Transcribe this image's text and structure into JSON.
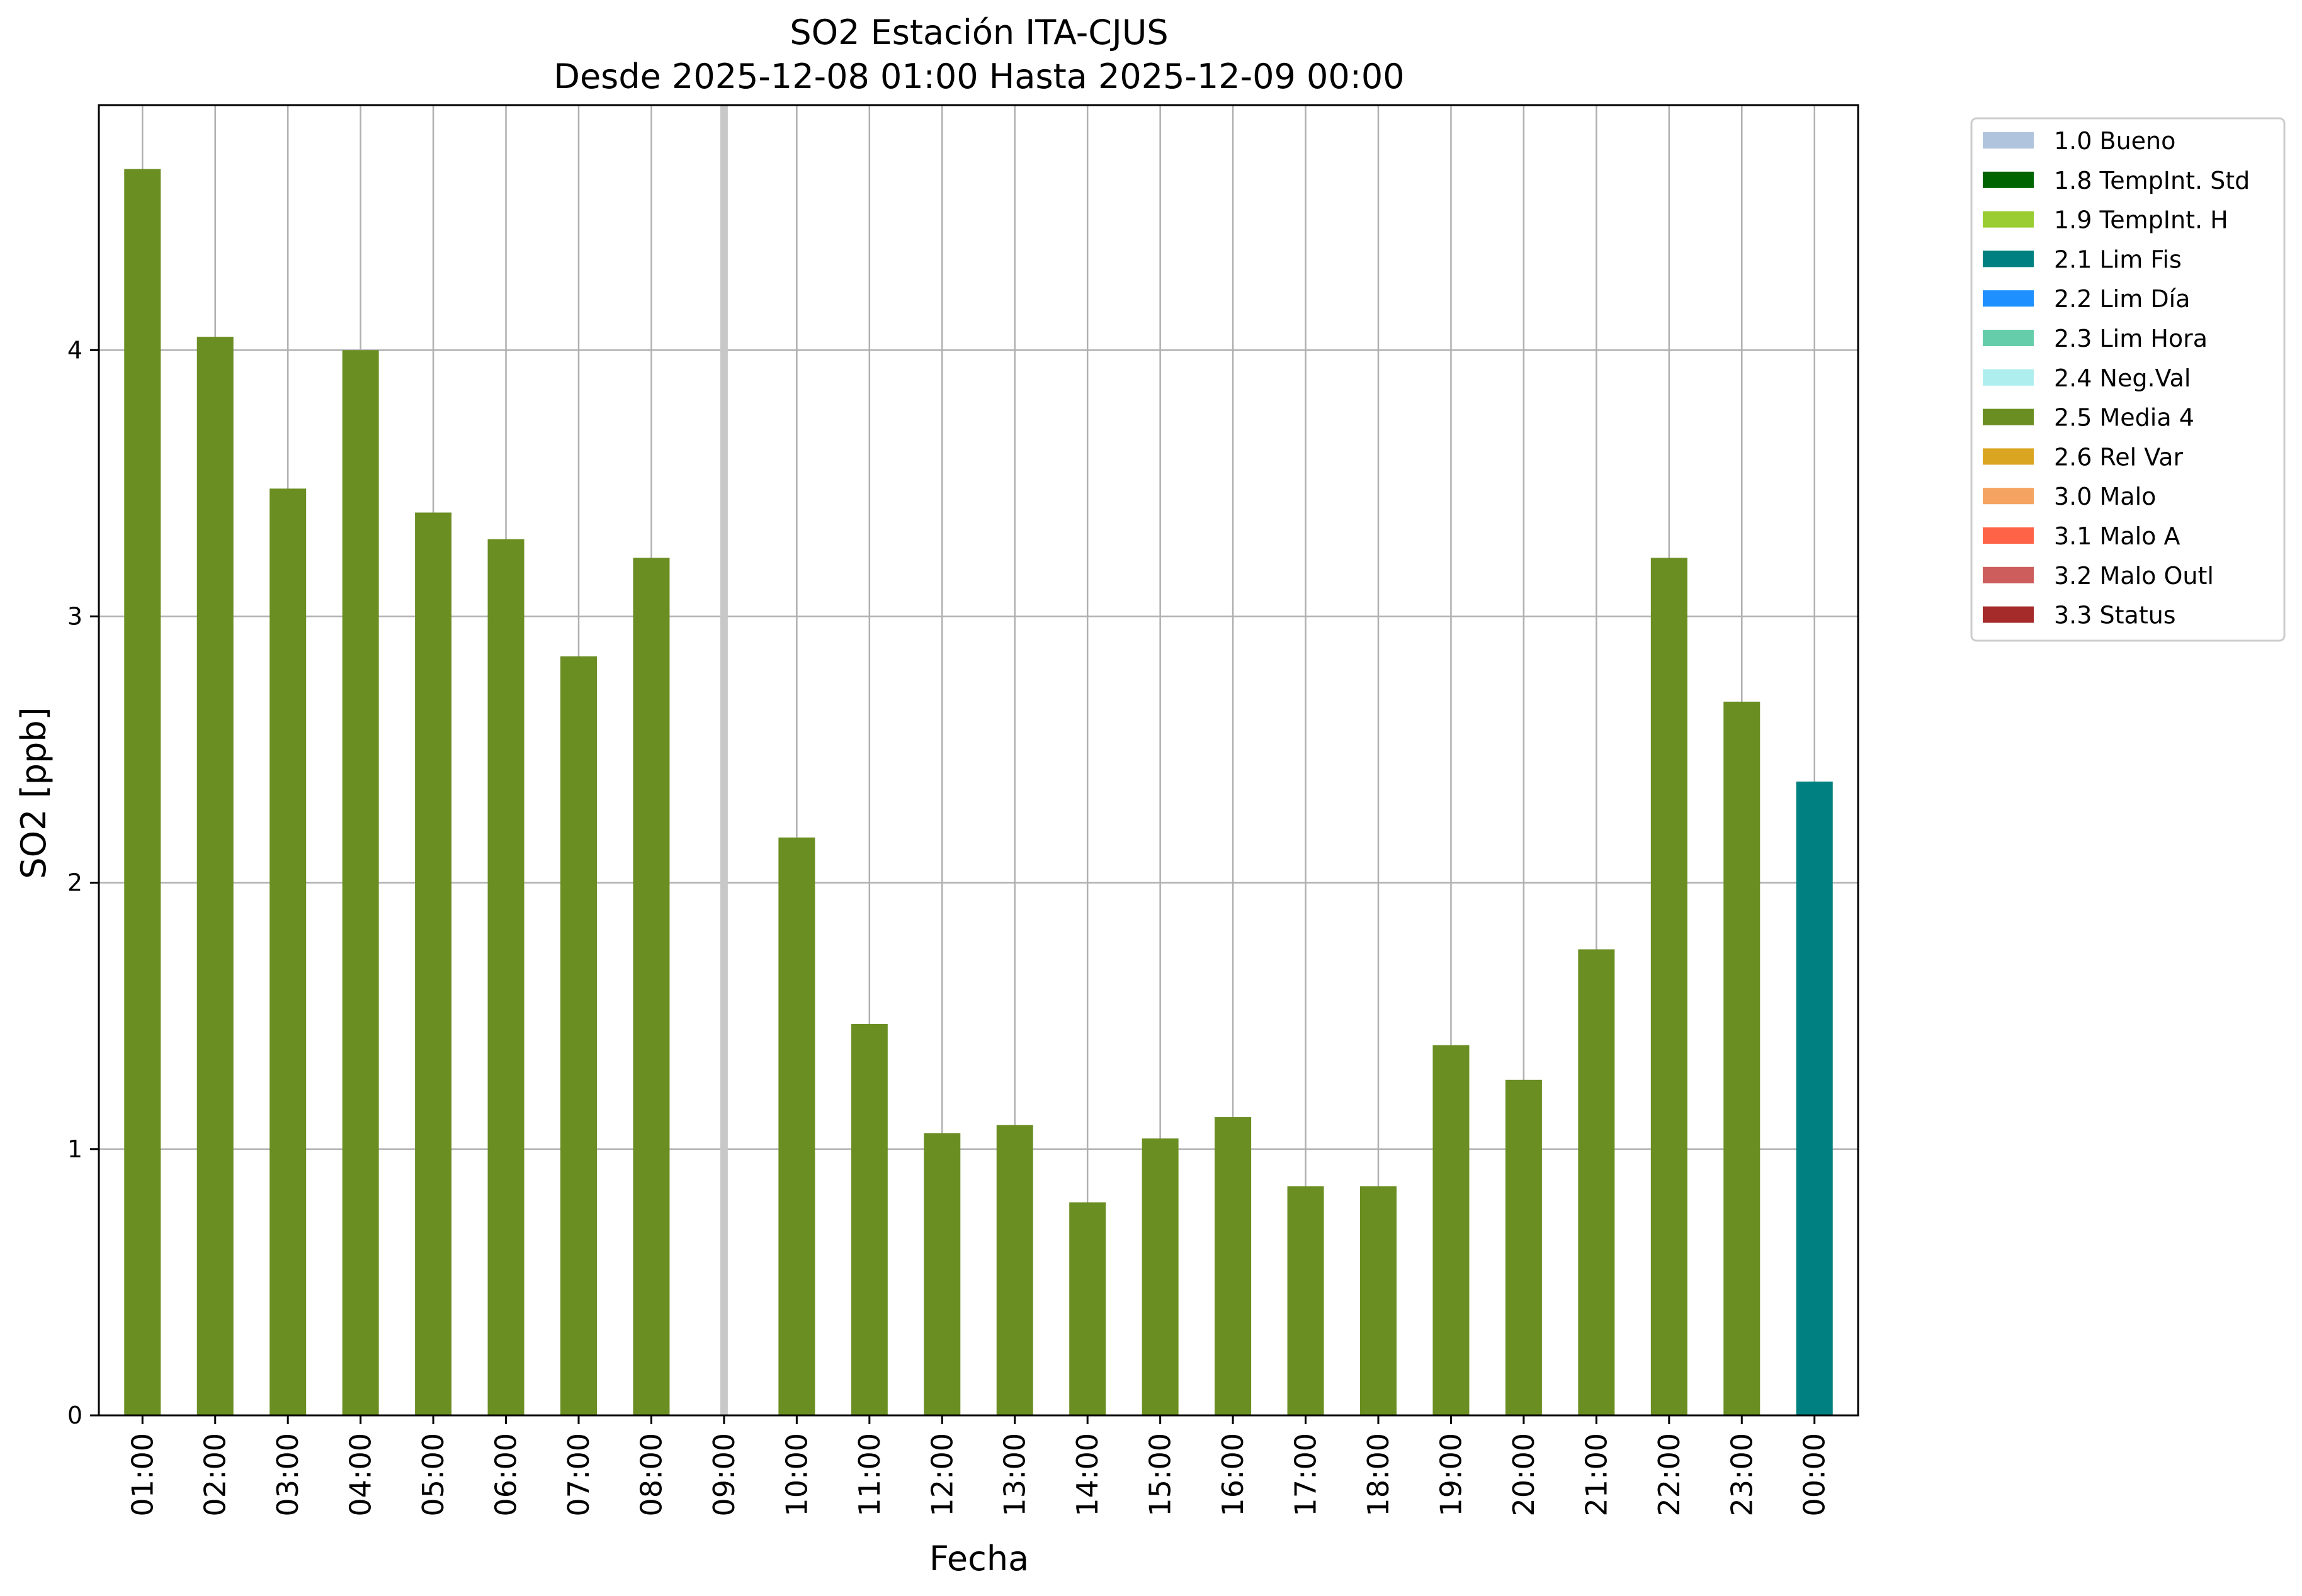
{
  "chart_data": {
    "type": "bar",
    "title": "SO2 Estación ITA-CJUS",
    "subtitle": "Desde 2025-12-08 01:00 Hasta 2025-12-09 00:00",
    "xlabel": "Fecha",
    "ylabel": "SO2 [ppb]",
    "ylim": [
      0,
      4.92
    ],
    "yticks": [
      0,
      1,
      2,
      3,
      4
    ],
    "grid": true,
    "legend_position": "outside-right-top",
    "categories": [
      "01:00",
      "02:00",
      "03:00",
      "04:00",
      "05:00",
      "06:00",
      "07:00",
      "08:00",
      "09:00",
      "10:00",
      "11:00",
      "12:00",
      "13:00",
      "14:00",
      "15:00",
      "16:00",
      "17:00",
      "18:00",
      "19:00",
      "20:00",
      "21:00",
      "22:00",
      "23:00",
      "00:00"
    ],
    "values": [
      4.68,
      4.05,
      3.48,
      4.0,
      3.39,
      3.29,
      2.85,
      3.22,
      null,
      2.17,
      1.47,
      1.06,
      1.09,
      0.8,
      1.04,
      1.12,
      0.86,
      0.86,
      1.39,
      1.26,
      1.75,
      3.22,
      2.68,
      2.38
    ],
    "flags": [
      "2.5 Media 4",
      "2.5 Media 4",
      "2.5 Media 4",
      "2.5 Media 4",
      "2.5 Media 4",
      "2.5 Media 4",
      "2.5 Media 4",
      "2.5 Media 4",
      null,
      "2.5 Media 4",
      "2.5 Media 4",
      "2.5 Media 4",
      "2.5 Media 4",
      "2.5 Media 4",
      "2.5 Media 4",
      "2.5 Media 4",
      "2.5 Media 4",
      "2.5 Media 4",
      "2.5 Media 4",
      "2.5 Media 4",
      "2.5 Media 4",
      "2.5 Media 4",
      "2.5 Media 4",
      "2.1 Lim Fis"
    ],
    "missing_marker_category": "09:00",
    "missing_marker_color": "#c8c8c8",
    "legend": [
      {
        "label": "1.0 Bueno",
        "color": "#b0c4de"
      },
      {
        "label": "1.8 TempInt. Std",
        "color": "#006400"
      },
      {
        "label": "1.9 TempInt. H",
        "color": "#9acd32"
      },
      {
        "label": "2.1 Lim Fis",
        "color": "#008080"
      },
      {
        "label": "2.2 Lim Día",
        "color": "#1e90ff"
      },
      {
        "label": "2.3 Lim Hora",
        "color": "#66cdaa"
      },
      {
        "label": "2.4 Neg.Val",
        "color": "#afeeee"
      },
      {
        "label": "2.5 Media 4",
        "color": "#6b8e23"
      },
      {
        "label": "2.6 Rel Var",
        "color": "#daa520"
      },
      {
        "label": "3.0 Malo",
        "color": "#f4a460"
      },
      {
        "label": "3.1 Malo A",
        "color": "#ff6347"
      },
      {
        "label": "3.2 Malo Outl",
        "color": "#cd5c5c"
      },
      {
        "label": "3.3 Status",
        "color": "#a52a2a"
      }
    ]
  }
}
